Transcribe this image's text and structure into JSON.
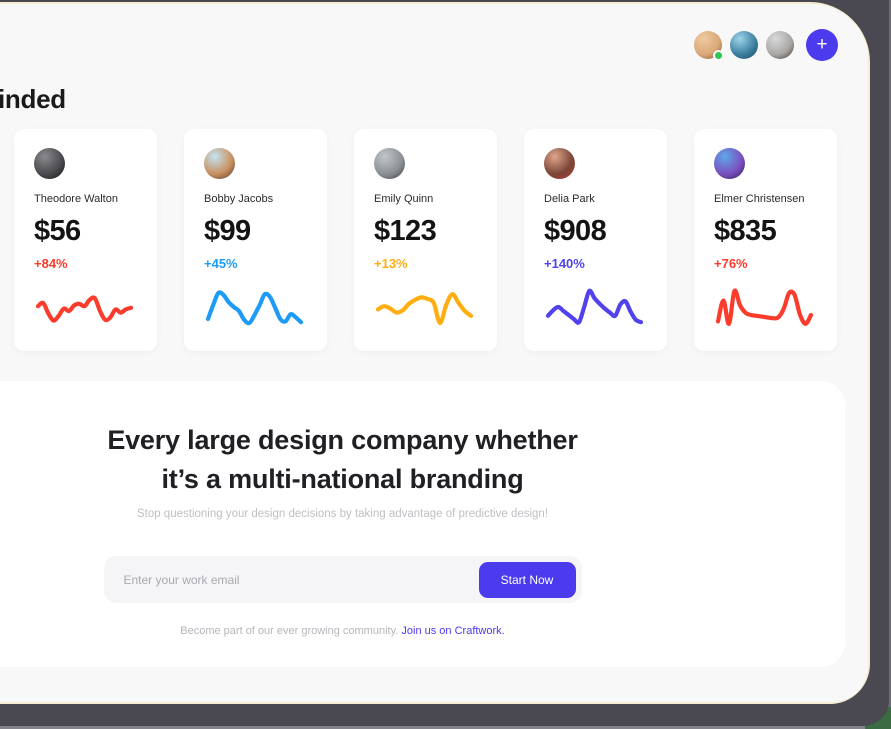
{
  "window": {
    "heading": "inded",
    "topbar": {
      "avatars": [
        {
          "label": "teammate-avatar-1",
          "online": true,
          "colors": [
            "#EFC9A1",
            "#D9A877",
            "#7A4E2E"
          ]
        },
        {
          "label": "teammate-avatar-2",
          "online": false,
          "colors": [
            "#9FD4EA",
            "#3C7E9E",
            "#1E4A63"
          ]
        },
        {
          "label": "teammate-avatar-3",
          "online": false,
          "colors": [
            "#D9D9DB",
            "#A9A6A4",
            "#3A3430"
          ]
        }
      ],
      "add_button_label": "+"
    }
  },
  "cards": [
    {
      "name": "Theodore Walton",
      "value": "$56",
      "change": "+84%",
      "change_color": "#FB3B2C",
      "avatar_colors": [
        "#8A8A8E",
        "#4A4A4E",
        "#141414"
      ],
      "sparkline": [
        52,
        60,
        34,
        16,
        28,
        46,
        40,
        54,
        58,
        52,
        68,
        72,
        40,
        18,
        24,
        44,
        36,
        44,
        48
      ]
    },
    {
      "name": "Bobby Jacobs",
      "value": "$99",
      "change": "+45%",
      "change_color": "#1E9BF6",
      "avatar_colors": [
        "#C3E4F2",
        "#C98F5F",
        "#4A3A30"
      ],
      "sparkline": [
        20,
        55,
        85,
        80,
        62,
        50,
        40,
        18,
        10,
        30,
        55,
        82,
        75,
        48,
        20,
        14,
        32,
        24,
        12
      ]
    },
    {
      "name": "Emily Quinn",
      "value": "$123",
      "change": "+13%",
      "change_color": "#FFAE11",
      "avatar_colors": [
        "#C2C6C9",
        "#8C9094",
        "#3C3E40"
      ],
      "sparkline": [
        44,
        52,
        46,
        36,
        42,
        58,
        68,
        74,
        70,
        60,
        10,
        55,
        82,
        60,
        40,
        28
      ]
    },
    {
      "name": "Delia Park",
      "value": "$908",
      "change": "+140%",
      "change_color": "#5242EE",
      "avatar_colors": [
        "#E0A68B",
        "#7A4638",
        "#B5352F"
      ],
      "sparkline": [
        28,
        42,
        50,
        40,
        30,
        20,
        12,
        50,
        90,
        72,
        58,
        46,
        36,
        28,
        56,
        64,
        38,
        18,
        12
      ]
    },
    {
      "name": "Elmer Christensen",
      "value": "$835",
      "change": "+76%",
      "change_color": "#FB3B2C",
      "avatar_colors": [
        "#5FA8E8",
        "#7A4FC0",
        "#2A1E4E"
      ],
      "sparkline": [
        14,
        66,
        8,
        90,
        55,
        36,
        30,
        28,
        26,
        24,
        22,
        24,
        45,
        85,
        80,
        30,
        8,
        30
      ]
    }
  ],
  "cta": {
    "title_line1": "Every large design company whether",
    "title_line2": "it’s a multi-national branding",
    "subtitle": "Stop questioning your design decisions by taking advantage of predictive design!",
    "email_placeholder": "Enter your work email",
    "button_label": "Start Now",
    "footer_text": "Become part of our ever growing community.",
    "footer_link": "Join us on Craftwork."
  },
  "colors": {
    "accent_indigo": "#4B3AEE",
    "red": "#FB3B2C",
    "blue": "#1E9BF6",
    "amber": "#FFAE11",
    "indigo": "#5242EE",
    "online_green": "#2DC653",
    "page_bg": "#F8F8F9",
    "backdrop": "#4A4850",
    "cream_edge": "#F7EDD2"
  }
}
